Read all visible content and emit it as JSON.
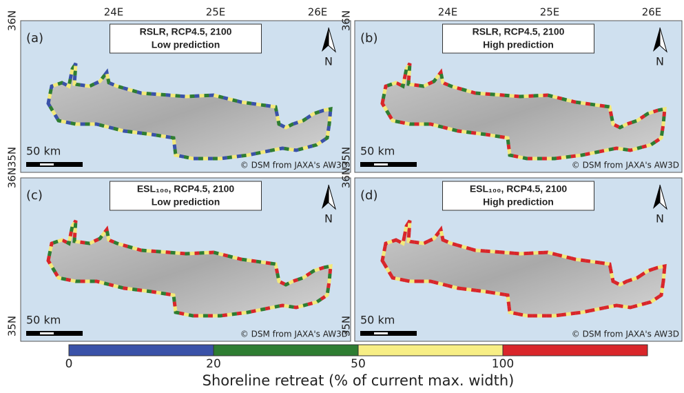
{
  "x_ticks": [
    "24E",
    "25E",
    "26E"
  ],
  "y_ticks": [
    "36N",
    "35N"
  ],
  "north_label": "N",
  "scale_label": "50 km",
  "credit": "© DSM from JAXA's AW3D",
  "panels": [
    {
      "label": "(a)",
      "title": [
        "RSLR, RCP4.5, 2100",
        "Low prediction"
      ],
      "coast": [
        "#3a52a8",
        "#2e7d32",
        "#f3e97a"
      ]
    },
    {
      "label": "(b)",
      "title": [
        "RSLR, RCP4.5, 2100",
        "High prediction"
      ],
      "coast": [
        "#d9262a",
        "#f3e97a",
        "#2e7d32"
      ]
    },
    {
      "label": "(c)",
      "title": [
        "ESL₁₀₀, RCP4.5, 2100",
        "Low prediction"
      ],
      "coast": [
        "#d9262a",
        "#f3e97a",
        "#2e7d32"
      ]
    },
    {
      "label": "(d)",
      "title": [
        "ESL₁₀₀, RCP4.5, 2100",
        "High prediction"
      ],
      "coast": [
        "#d9262a",
        "#d9262a",
        "#f3e97a"
      ]
    }
  ],
  "colorbar": {
    "ticks": [
      0,
      20,
      50,
      100
    ],
    "colors": [
      "#3a52a8",
      "#2e7d32",
      "#f7ee85",
      "#d9262a"
    ],
    "title": "Shoreline retreat (% of current max. width)"
  }
}
